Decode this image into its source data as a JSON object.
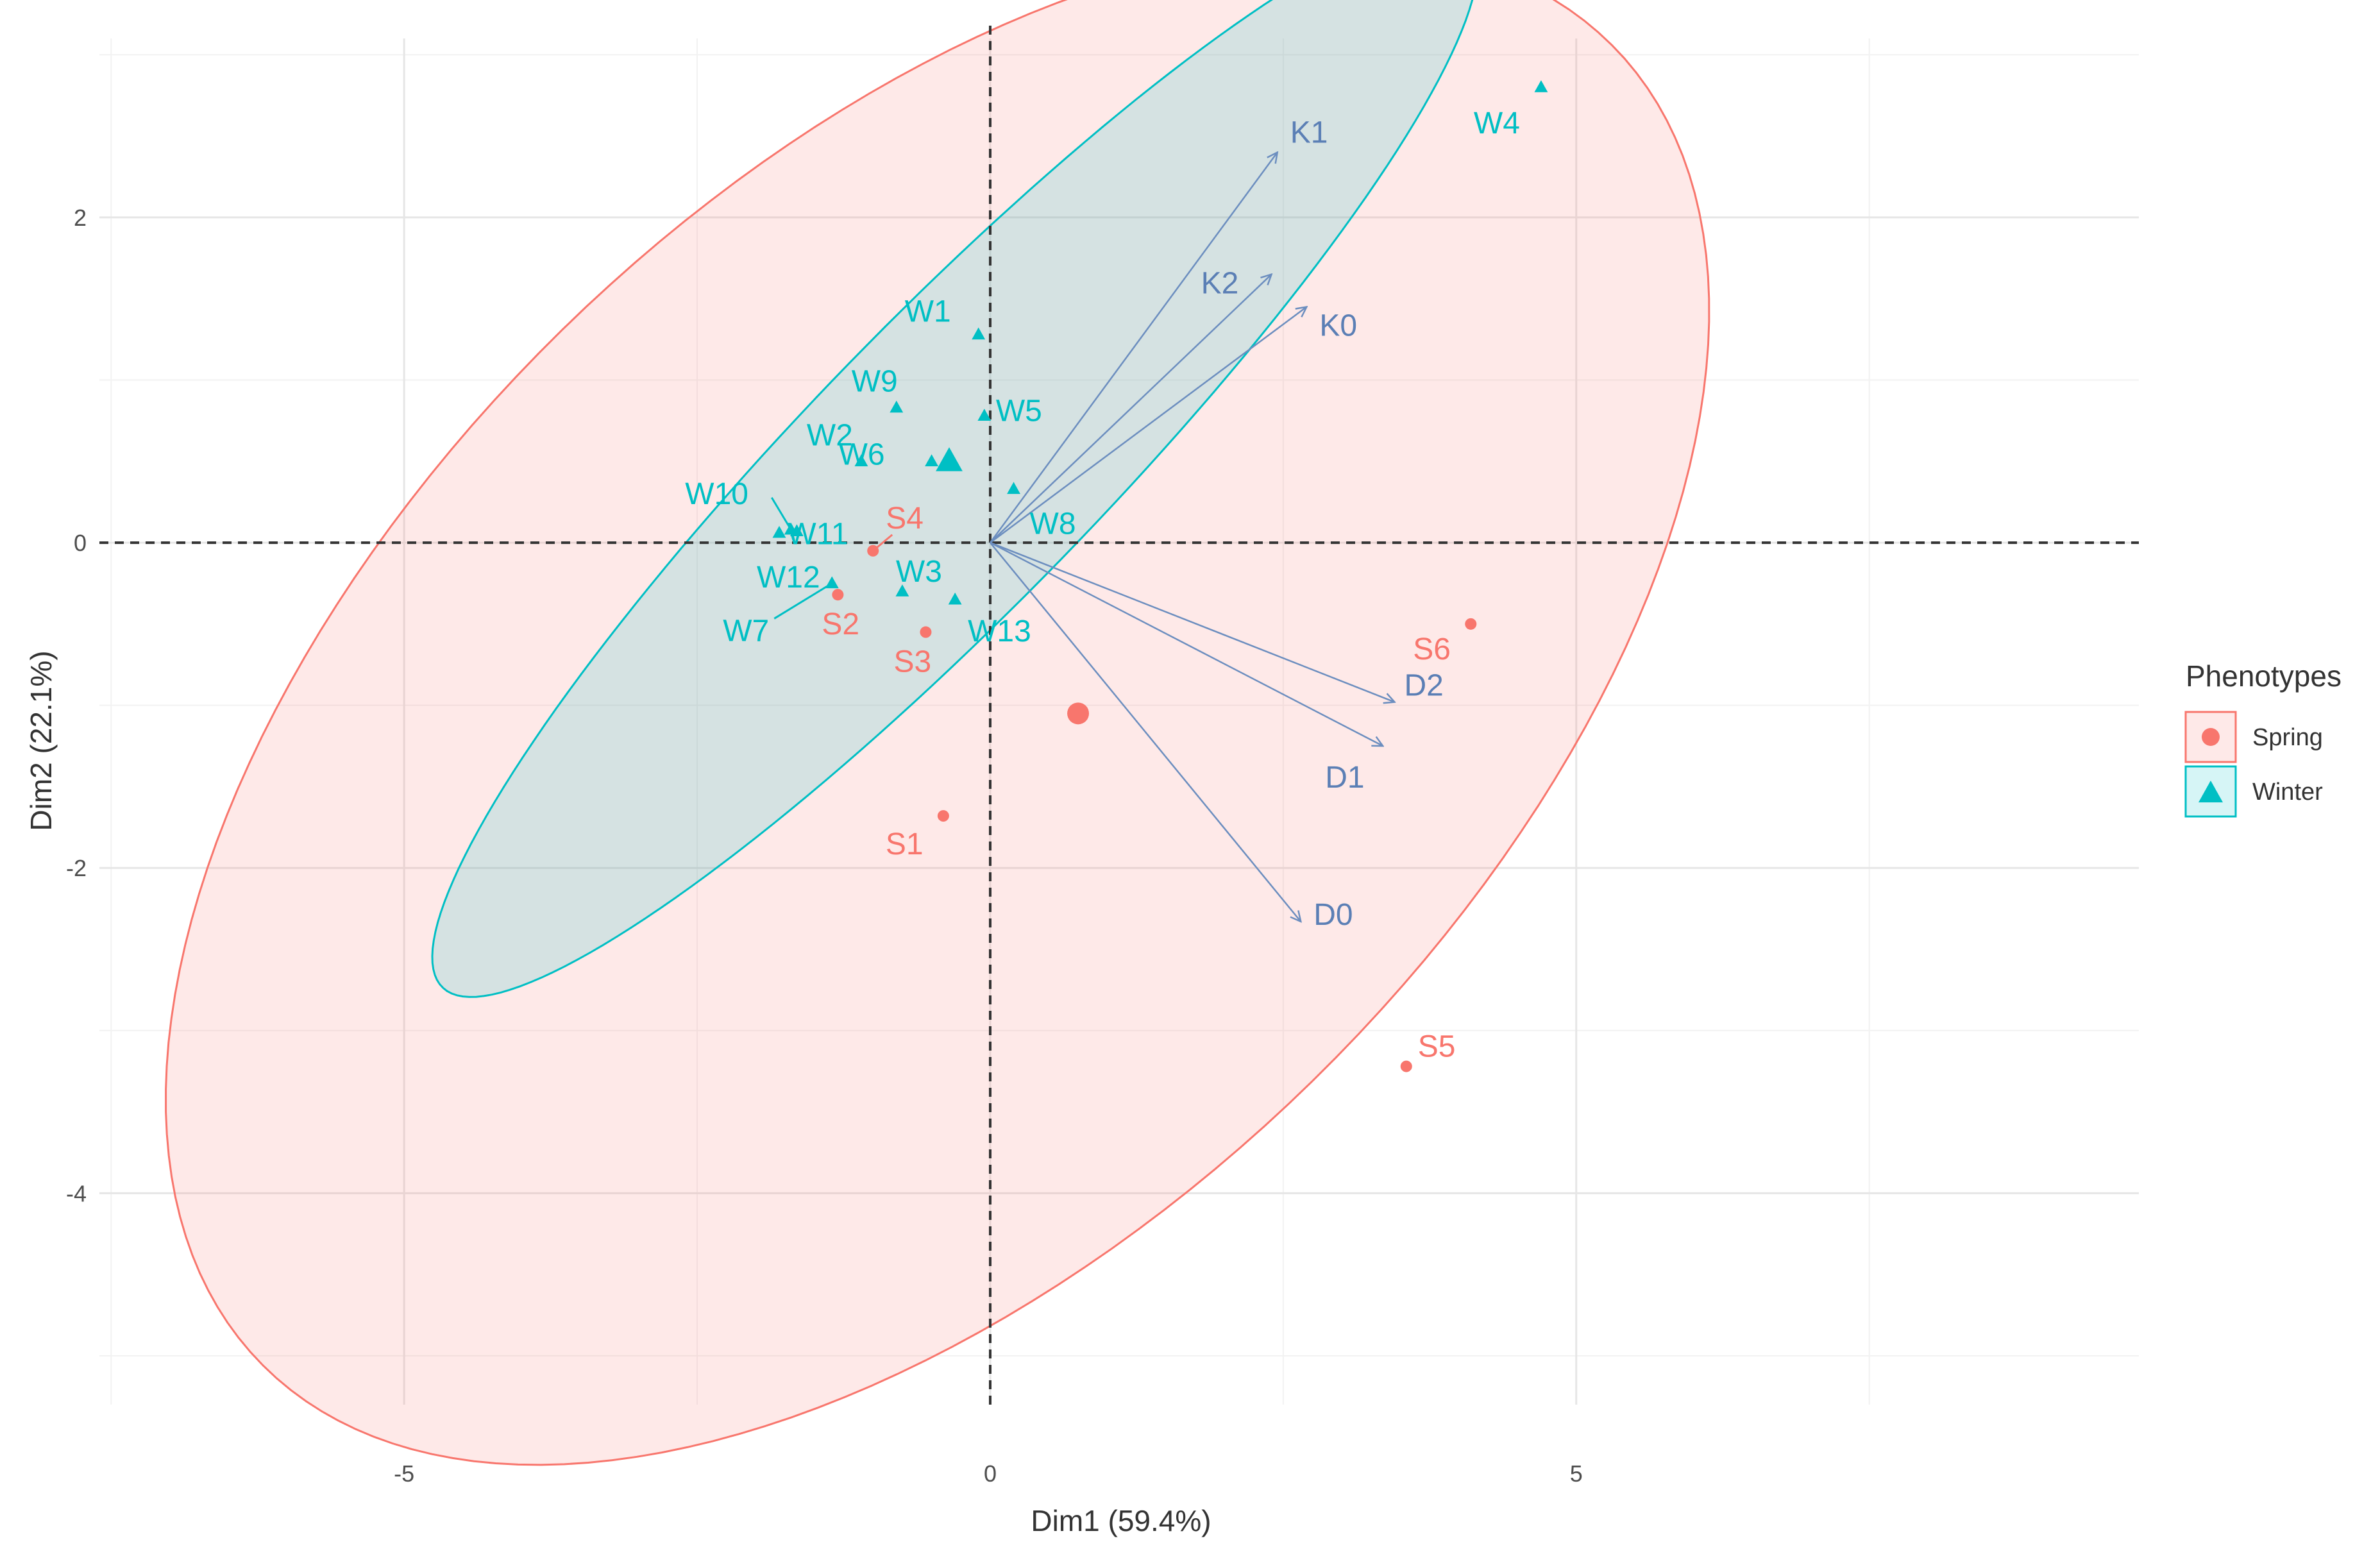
{
  "chart_data": {
    "type": "scatter",
    "subtype": "PCA biplot",
    "title": "",
    "xlabel": "Dim1 (59.4%)",
    "ylabel": "Dim2 (22.1%)",
    "xlim": [
      -7.6,
      9.8
    ],
    "ylim": [
      -5.3,
      3.1
    ],
    "xticks": [
      -5,
      0,
      5
    ],
    "yticks": [
      2,
      0,
      -2,
      -4
    ],
    "grid": true,
    "legend": {
      "title": "Phenotypes",
      "position": "right",
      "entries": [
        {
          "label": "Spring",
          "color": "#F8766D",
          "shape": "circle"
        },
        {
          "label": "Winter",
          "color": "#00BFC4",
          "shape": "triangle"
        }
      ]
    },
    "groups": [
      {
        "name": "Spring",
        "color": "#F8766D",
        "centroid": {
          "x": 0.75,
          "y": -1.05
        },
        "ellipse": {
          "center": [
            -0.45,
            -1.0
          ],
          "rx": 7.2,
          "ry": 3.65,
          "angle_deg": 28
        },
        "points": [
          {
            "label": "S1",
            "x": -0.4,
            "y": -1.68
          },
          {
            "label": "S2",
            "x": -1.3,
            "y": -0.32
          },
          {
            "label": "S3",
            "x": -0.55,
            "y": -0.55
          },
          {
            "label": "S4",
            "x": -1.0,
            "y": -0.05
          },
          {
            "label": "S5",
            "x": 3.55,
            "y": -3.22
          },
          {
            "label": "S6",
            "x": 4.1,
            "y": -0.5
          }
        ]
      },
      {
        "name": "Winter",
        "color": "#00BFC4",
        "centroid": {
          "x": -0.35,
          "y": 0.5
        },
        "ellipse": {
          "center": [
            -0.3,
            0.5
          ],
          "rx": 5.45,
          "ry": 1.02,
          "angle_deg": 35.8
        },
        "points": [
          {
            "label": "W1",
            "x": -0.1,
            "y": 1.28
          },
          {
            "label": "W2",
            "x": -1.1,
            "y": 0.5
          },
          {
            "label": "W3",
            "x": -0.75,
            "y": -0.3
          },
          {
            "label": "W4",
            "x": 4.7,
            "y": 2.8
          },
          {
            "label": "W5",
            "x": -0.05,
            "y": 0.78
          },
          {
            "label": "W6",
            "x": -0.5,
            "y": 0.5
          },
          {
            "label": "W7",
            "x": -1.35,
            "y": -0.25
          },
          {
            "label": "W8",
            "x": 0.2,
            "y": 0.33
          },
          {
            "label": "W9",
            "x": -0.8,
            "y": 0.83
          },
          {
            "label": "W10",
            "x": -1.7,
            "y": 0.08
          },
          {
            "label": "W11",
            "x": -1.65,
            "y": 0.07
          },
          {
            "label": "W12",
            "x": -1.8,
            "y": 0.06
          },
          {
            "label": "W13",
            "x": -0.3,
            "y": -0.35
          }
        ]
      }
    ],
    "variables": [
      {
        "label": "K1",
        "x": 2.45,
        "y": 2.4
      },
      {
        "label": "K2",
        "x": 2.4,
        "y": 1.65
      },
      {
        "label": "K0",
        "x": 2.7,
        "y": 1.45
      },
      {
        "label": "D2",
        "x": 3.45,
        "y": -0.98
      },
      {
        "label": "D1",
        "x": 3.35,
        "y": -1.25
      },
      {
        "label": "D0",
        "x": 2.65,
        "y": -2.33
      }
    ],
    "reference_lines": {
      "x": 0,
      "y": 0,
      "style": "dashed"
    }
  }
}
